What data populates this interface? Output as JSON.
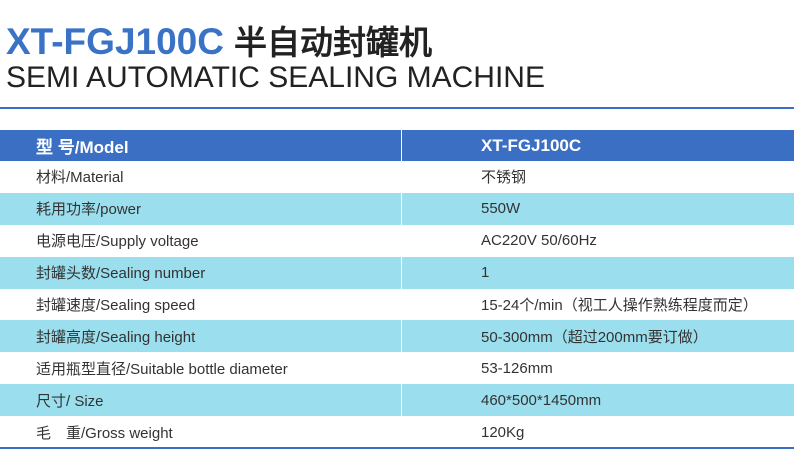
{
  "title": {
    "model": "XT-FGJ100C",
    "name_cn": "半自动封罐机",
    "name_en": "SEMI AUTOMATIC SEALING MACHINE"
  },
  "colors": {
    "header": "#3a6fc4",
    "stripe": "#9bdfee"
  },
  "table": {
    "header": {
      "label": "型 号/Model",
      "value": "XT-FGJ100C"
    },
    "rows": [
      {
        "label": "材料/Material",
        "value": "不锈钢"
      },
      {
        "label": "耗用功率/power",
        "value": "550W"
      },
      {
        "label": "电源电压/Supply voltage",
        "value": "AC220V 50/60Hz"
      },
      {
        "label": "封罐头数/Sealing number",
        "value": "1"
      },
      {
        "label": "封罐速度/Sealing speed",
        "value": "15-24个/min（视工人操作熟练程度而定）"
      },
      {
        "label": "封罐高度/Sealing height",
        "value": "50-300mm（超过200mm要订做）"
      },
      {
        "label": "适用瓶型直径/Suitable bottle diameter",
        "value": "53-126mm"
      },
      {
        "label": "尺寸/ Size",
        "value": "460*500*1450mm"
      },
      {
        "label": "毛　重/Gross weight",
        "value": "120Kg"
      }
    ]
  }
}
